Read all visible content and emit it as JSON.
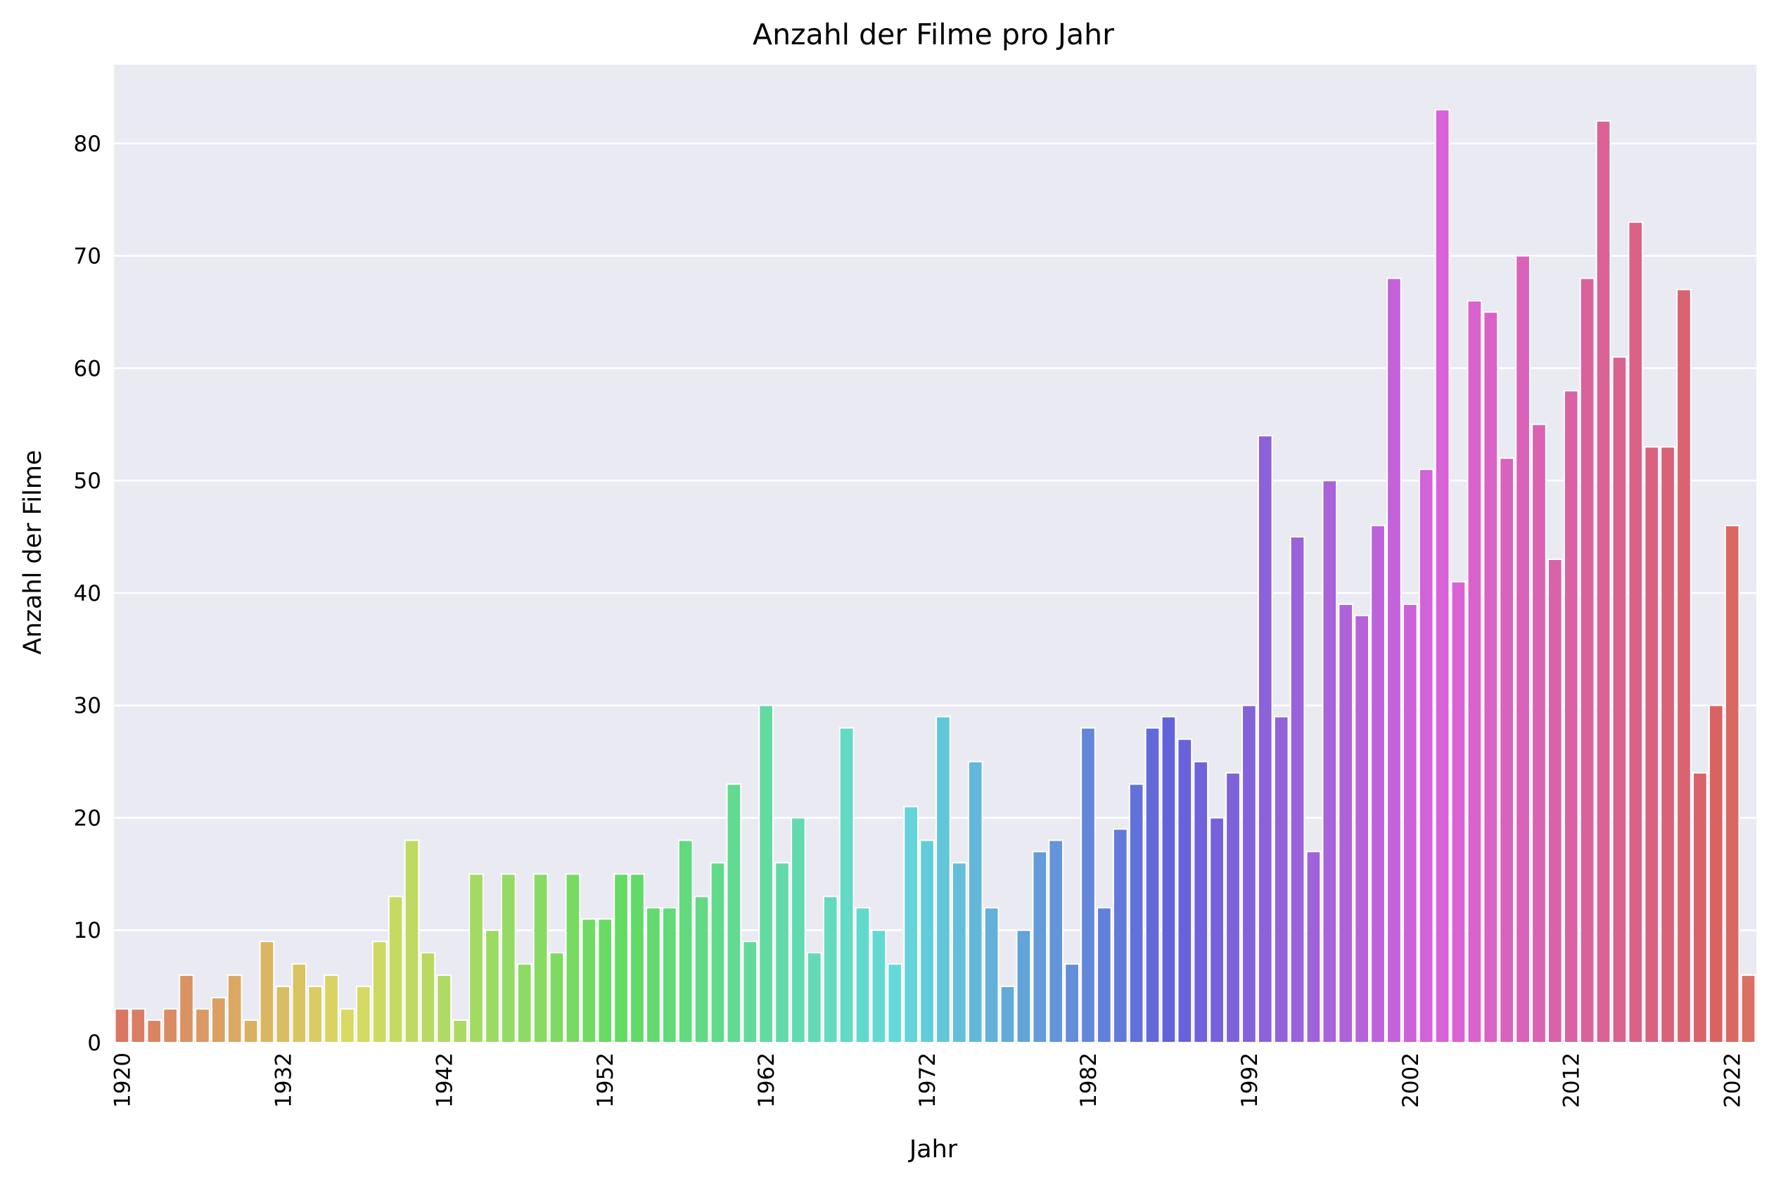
{
  "chart_data": {
    "type": "bar",
    "title": "Anzahl der Filme pro Jahr",
    "xlabel": "Jahr",
    "ylabel": "Anzahl der Filme",
    "ylim": [
      0,
      87
    ],
    "yticks": [
      0,
      10,
      20,
      30,
      40,
      50,
      60,
      70,
      80
    ],
    "xtick_labels": [
      "1920",
      "1932",
      "1942",
      "1952",
      "1962",
      "1972",
      "1982",
      "1992",
      "2002",
      "2012",
      "2022"
    ],
    "grid": true,
    "background": "#eaeaf2",
    "categories": [
      1920,
      1921,
      1922,
      1923,
      1924,
      1925,
      1926,
      1927,
      1928,
      1931,
      1932,
      1933,
      1934,
      1935,
      1936,
      1937,
      1938,
      1939,
      1940,
      1941,
      1942,
      1943,
      1944,
      1945,
      1946,
      1947,
      1948,
      1949,
      1950,
      1951,
      1952,
      1953,
      1954,
      1955,
      1956,
      1957,
      1958,
      1959,
      1960,
      1961,
      1962,
      1963,
      1964,
      1965,
      1966,
      1967,
      1968,
      1969,
      1970,
      1971,
      1972,
      1973,
      1974,
      1975,
      1976,
      1977,
      1978,
      1979,
      1980,
      1981,
      1982,
      1983,
      1984,
      1985,
      1986,
      1987,
      1988,
      1989,
      1990,
      1991,
      1992,
      1993,
      1994,
      1995,
      1996,
      1997,
      1998,
      1999,
      2000,
      2001,
      2002,
      2003,
      2004,
      2005,
      2006,
      2007,
      2008,
      2009,
      2010,
      2011,
      2012,
      2013,
      2014,
      2015,
      2016,
      2017,
      2018,
      2019,
      2020,
      2021,
      2022,
      2023
    ],
    "values": [
      3,
      3,
      2,
      3,
      6,
      3,
      4,
      6,
      2,
      9,
      5,
      7,
      5,
      6,
      3,
      5,
      9,
      13,
      18,
      8,
      6,
      2,
      15,
      10,
      15,
      7,
      15,
      8,
      15,
      11,
      11,
      15,
      15,
      12,
      12,
      18,
      13,
      16,
      23,
      9,
      30,
      16,
      20,
      8,
      13,
      28,
      12,
      10,
      7,
      21,
      18,
      29,
      16,
      25,
      12,
      5,
      10,
      17,
      18,
      7,
      28,
      12,
      19,
      23,
      28,
      29,
      27,
      25,
      20,
      24,
      30,
      54,
      29,
      45,
      17,
      50,
      39,
      38,
      46,
      68,
      39,
      51,
      83,
      41,
      66,
      65,
      52,
      70,
      55,
      43,
      58,
      68,
      82,
      61,
      73,
      53,
      53,
      67,
      24,
      30,
      46,
      6
    ]
  }
}
